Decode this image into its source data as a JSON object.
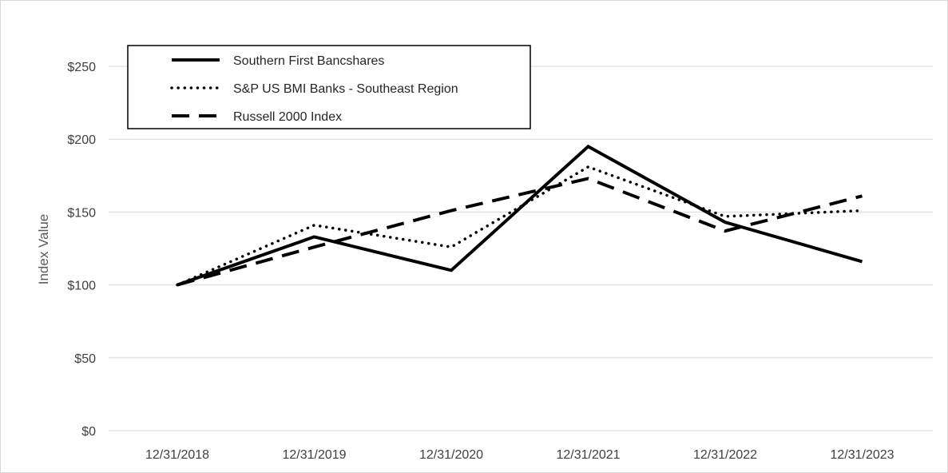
{
  "chart_data": {
    "type": "line",
    "title": "",
    "xlabel": "",
    "ylabel": "Index Value",
    "categories": [
      "12/31/2018",
      "12/31/2019",
      "12/31/2020",
      "12/31/2021",
      "12/31/2022",
      "12/31/2023"
    ],
    "ylim": [
      0,
      250
    ],
    "yticks": [
      0,
      50,
      100,
      150,
      200,
      250
    ],
    "ytick_labels": [
      "$0",
      "$50",
      "$100",
      "$150",
      "$200",
      "$250"
    ],
    "grid": "horizontal",
    "legend_position": "top-left",
    "series": [
      {
        "name": "Southern First Bancshares",
        "style": "solid",
        "color": "#000000",
        "values": [
          100,
          133,
          110,
          195,
          143,
          116
        ]
      },
      {
        "name": "S&P US BMI Banks - Southeast Region",
        "style": "dotted",
        "color": "#000000",
        "values": [
          100,
          141,
          126,
          181,
          147,
          151
        ]
      },
      {
        "name": "Russell 2000 Index",
        "style": "dashed",
        "color": "#000000",
        "values": [
          100,
          126,
          151,
          173,
          137,
          161
        ]
      }
    ]
  }
}
